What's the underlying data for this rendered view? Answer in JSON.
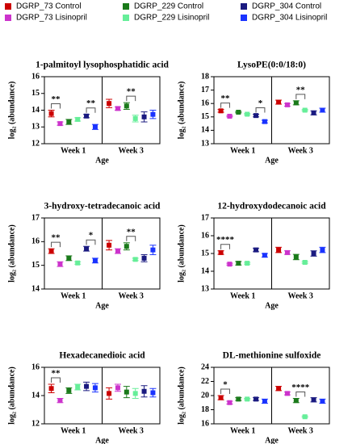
{
  "legend": {
    "series": [
      {
        "name": "DGRP_73 Control",
        "color": "#cc0000"
      },
      {
        "name": "DGRP_73 Lisinopril",
        "color": "#cc33cc"
      },
      {
        "name": "DGRP_229 Control",
        "color": "#1a7a1a"
      },
      {
        "name": "DGRP_229 Lisinopril",
        "color": "#66ee99"
      },
      {
        "name": "DGRP_304 Control",
        "color": "#1a1a80"
      },
      {
        "name": "DGRP_304 Lisinopril",
        "color": "#1a33ff"
      }
    ]
  },
  "chart_data": [
    {
      "type": "dot",
      "title": "1-palmitoyl lysophosphatidic acid",
      "x_label": "Age",
      "y_label": "log₂ (abundance)",
      "categories": [
        "Week 1",
        "Week 3"
      ],
      "ylim": [
        12,
        16
      ],
      "yticks": [
        12,
        13,
        14,
        15,
        16
      ],
      "series": [
        {
          "values": [
            13.8,
            14.4
          ],
          "errors": [
            0.2,
            0.25
          ]
        },
        {
          "values": [
            13.2,
            14.1
          ],
          "errors": [
            0.1,
            0.1
          ]
        },
        {
          "values": [
            13.3,
            14.25
          ],
          "errors": [
            0.15,
            0.2
          ]
        },
        {
          "values": [
            13.45,
            13.5
          ],
          "errors": [
            0.1,
            0.2
          ]
        },
        {
          "values": [
            13.65,
            13.6
          ],
          "errors": [
            0.1,
            0.3
          ]
        },
        {
          "values": [
            13.0,
            13.75
          ],
          "errors": [
            0.15,
            0.25
          ]
        }
      ],
      "annotations": [
        {
          "group": 0,
          "from": 0,
          "to": 1,
          "label": "**"
        },
        {
          "group": 0,
          "from": 4,
          "to": 5,
          "label": "**"
        },
        {
          "group": 1,
          "from": 2,
          "to": 3,
          "label": "**"
        }
      ]
    },
    {
      "type": "dot",
      "title": "LysoPE(0:0/18:0)",
      "x_label": "Age",
      "y_label": "log₂ (abundance)",
      "categories": [
        "Week 1",
        "Week 3"
      ],
      "ylim": [
        13,
        18
      ],
      "yticks": [
        13,
        14,
        15,
        16,
        17,
        18
      ],
      "series": [
        {
          "values": [
            15.45,
            16.1
          ],
          "errors": [
            0.1,
            0.15
          ]
        },
        {
          "values": [
            15.05,
            15.9
          ],
          "errors": [
            0.05,
            0.1
          ]
        },
        {
          "values": [
            15.35,
            16.05
          ],
          "errors": [
            0.05,
            0.15
          ]
        },
        {
          "values": [
            15.2,
            15.5
          ],
          "errors": [
            0.05,
            0.05
          ]
        },
        {
          "values": [
            15.1,
            15.3
          ],
          "errors": [
            0.1,
            0.15
          ]
        },
        {
          "values": [
            14.65,
            15.5
          ],
          "errors": [
            0.1,
            0.15
          ]
        }
      ],
      "annotations": [
        {
          "group": 0,
          "from": 0,
          "to": 1,
          "label": "**"
        },
        {
          "group": 0,
          "from": 4,
          "to": 5,
          "label": "*"
        },
        {
          "group": 1,
          "from": 2,
          "to": 3,
          "label": "**"
        }
      ]
    },
    {
      "type": "dot",
      "title": "3-hydroxy-tetradecanoic acid",
      "x_label": "Age",
      "y_label": "log₂ (abundance)",
      "categories": [
        "Week 1",
        "Week 3"
      ],
      "ylim": [
        14,
        17
      ],
      "yticks": [
        14,
        15,
        16,
        17
      ],
      "series": [
        {
          "values": [
            15.6,
            15.85
          ],
          "errors": [
            0.1,
            0.2
          ]
        },
        {
          "values": [
            15.05,
            15.6
          ],
          "errors": [
            0.1,
            0.1
          ]
        },
        {
          "values": [
            15.3,
            15.8
          ],
          "errors": [
            0.1,
            0.15
          ]
        },
        {
          "values": [
            15.1,
            15.25
          ],
          "errors": [
            0.05,
            0.05
          ]
        },
        {
          "values": [
            15.7,
            15.3
          ],
          "errors": [
            0.1,
            0.15
          ]
        },
        {
          "values": [
            15.2,
            15.65
          ],
          "errors": [
            0.1,
            0.2
          ]
        }
      ],
      "annotations": [
        {
          "group": 0,
          "from": 0,
          "to": 1,
          "label": "**"
        },
        {
          "group": 0,
          "from": 4,
          "to": 5,
          "label": "*"
        },
        {
          "group": 1,
          "from": 2,
          "to": 3,
          "label": "**"
        }
      ]
    },
    {
      "type": "dot",
      "title": "12-hydroxydodecanoic acid",
      "x_label": "Age",
      "y_label": "log₂ (abundance)",
      "categories": [
        "Week 1",
        "Week 3"
      ],
      "ylim": [
        13,
        17
      ],
      "yticks": [
        13,
        14,
        15,
        16,
        17
      ],
      "series": [
        {
          "values": [
            15.05,
            15.2
          ],
          "errors": [
            0.1,
            0.15
          ]
        },
        {
          "values": [
            14.4,
            15.05
          ],
          "errors": [
            0.05,
            0.1
          ]
        },
        {
          "values": [
            14.45,
            14.8
          ],
          "errors": [
            0.1,
            0.15
          ]
        },
        {
          "values": [
            14.45,
            14.5
          ],
          "errors": [
            0.05,
            0.05
          ]
        },
        {
          "values": [
            15.2,
            15.0
          ],
          "errors": [
            0.1,
            0.15
          ]
        },
        {
          "values": [
            14.9,
            15.2
          ],
          "errors": [
            0.1,
            0.15
          ]
        }
      ],
      "annotations": [
        {
          "group": 0,
          "from": 0,
          "to": 1,
          "label": "****"
        }
      ]
    },
    {
      "type": "dot",
      "title": "Hexadecanedioic acid",
      "x_label": "Age",
      "y_label": "log₂ (abundance)",
      "categories": [
        "Week 1",
        "Week 3"
      ],
      "ylim": [
        12,
        16
      ],
      "yticks": [
        12,
        14,
        16
      ],
      "series": [
        {
          "values": [
            14.5,
            14.15
          ],
          "errors": [
            0.3,
            0.4
          ]
        },
        {
          "values": [
            13.65,
            14.55
          ],
          "errors": [
            0.15,
            0.25
          ]
        },
        {
          "values": [
            14.35,
            14.25
          ],
          "errors": [
            0.2,
            0.4
          ]
        },
        {
          "values": [
            14.6,
            14.15
          ],
          "errors": [
            0.2,
            0.35
          ]
        },
        {
          "values": [
            14.65,
            14.3
          ],
          "errors": [
            0.3,
            0.4
          ]
        },
        {
          "values": [
            14.55,
            14.2
          ],
          "errors": [
            0.3,
            0.3
          ]
        }
      ],
      "annotations": [
        {
          "group": 0,
          "from": 0,
          "to": 1,
          "label": "**"
        }
      ]
    },
    {
      "type": "dot",
      "title": "DL-methionine sulfoxide",
      "x_label": "Age",
      "y_label": "log₂ (abundance)",
      "categories": [
        "Week 1",
        "Week 3"
      ],
      "ylim": [
        16,
        24
      ],
      "yticks": [
        16,
        18,
        20,
        22,
        24
      ],
      "series": [
        {
          "values": [
            19.7,
            21.0
          ],
          "errors": [
            0.3,
            0.3
          ]
        },
        {
          "values": [
            19.0,
            20.3
          ],
          "errors": [
            0.2,
            0.2
          ]
        },
        {
          "values": [
            19.5,
            19.3
          ],
          "errors": [
            0.2,
            0.3
          ]
        },
        {
          "values": [
            19.5,
            17.0
          ],
          "errors": [
            0.1,
            0.1
          ]
        },
        {
          "values": [
            19.5,
            19.4
          ],
          "errors": [
            0.2,
            0.3
          ]
        },
        {
          "values": [
            19.2,
            19.2
          ],
          "errors": [
            0.3,
            0.3
          ]
        }
      ],
      "annotations": [
        {
          "group": 0,
          "from": 0,
          "to": 1,
          "label": "*"
        },
        {
          "group": 1,
          "from": 2,
          "to": 3,
          "label": "****"
        }
      ]
    }
  ]
}
